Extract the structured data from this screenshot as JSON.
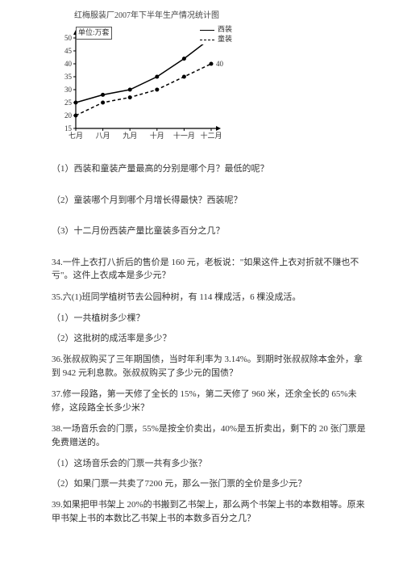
{
  "chart": {
    "type": "line",
    "title": "红梅服装厂2007年下半年生产情况统计图",
    "unit_label": "单位:万套",
    "x_categories": [
      "七月",
      "八月",
      "九月",
      "十月",
      "十一月",
      "十二月"
    ],
    "y_ticks": [
      15,
      20,
      25,
      30,
      35,
      40,
      45,
      50
    ],
    "ylim": [
      15,
      50
    ],
    "series": [
      {
        "name": "西装",
        "style": "solid",
        "color": "#000000",
        "values": [
          25,
          28,
          30,
          35,
          42,
          50
        ]
      },
      {
        "name": "童装",
        "style": "dashed",
        "color": "#000000",
        "values": [
          20,
          25,
          27,
          30,
          35,
          40
        ]
      }
    ],
    "end_labels": [
      {
        "value": "50",
        "series": 0
      },
      {
        "value": "40",
        "series": 1
      }
    ],
    "axis_color": "#000000",
    "grid_color": "#e0e0e0",
    "label_fontsize": 9,
    "title_fontsize": 10,
    "line_width": 1.5,
    "marker": "circle",
    "marker_size": 3,
    "background_color": "#ffffff"
  },
  "q": {
    "q1": "（1）西装和童装产量最高的分别是哪个月？最低的呢？",
    "q2": "（2）童装哪个月到哪个月增长得最快？西装呢？",
    "q3": "（3）十二月份西装产量比童装多百分之几？",
    "p34": "34.一件上衣打八折后的售价是 160 元，老板说：\"如果这件上衣对折就不赚也不亏\"。这件上衣成本是多少元？",
    "p35": "35.六(1)班同学植树节去公园种树，有 114 棵成活，6 棵没成活。",
    "p35_1": "（1）一共植树多少棵？",
    "p35_2": "（2）这批树的成活率是多少？",
    "p36": "36.张叔叔购买了三年期国债，当时年利率为 3.14%。到期时张叔叔除本金外，拿到 942 元利息款。张叔叔购买了多少元的国债？",
    "p37": "37.修一段路，第一天修了全长的 15%，第二天修了 960 米，还余全长的 65%未修，这段路全长多少米？",
    "p38": "38.一场音乐会的门票，55%是按全价卖出，40%是五折卖出，剩下的 20 张门票是免费赠送的。",
    "p38_1": "（1）这场音乐会的门票一共有多少张？",
    "p38_2": "（2）如果门票一共卖了7200 元，那么一张门票的全价是多少元？",
    "p39": "39.如果把甲书架上 20%的书搬到乙书架上，那么两个书架上书的本数相等。原来甲书架上书的本数比乙书架上书的本数多百分之几？"
  }
}
